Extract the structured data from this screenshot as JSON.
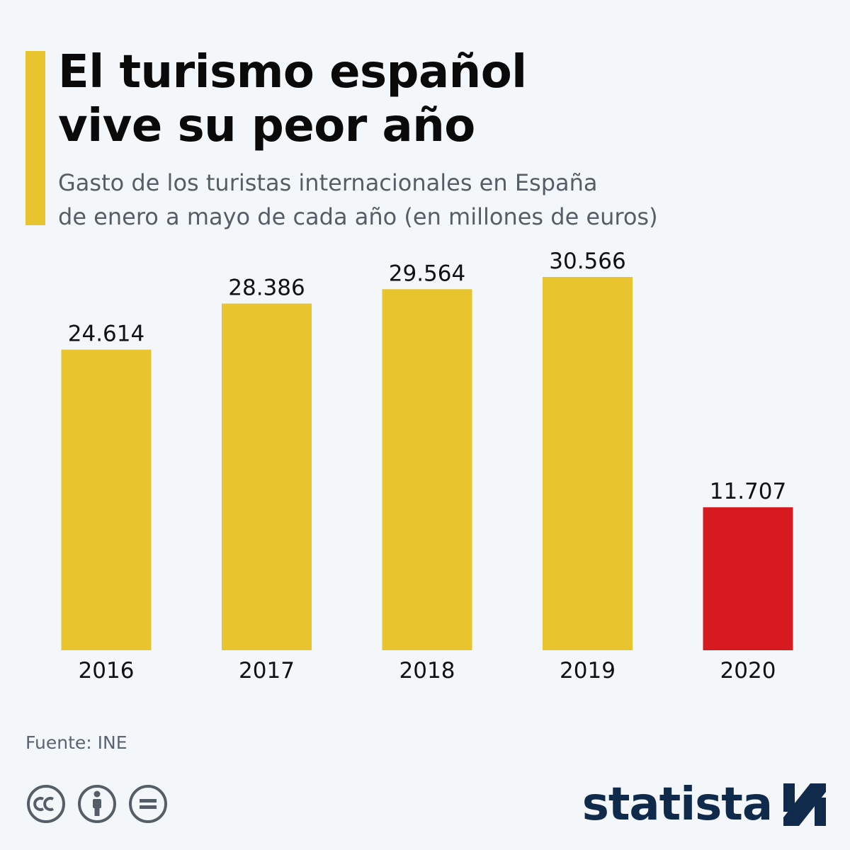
{
  "header": {
    "title_line1": "El turismo español",
    "title_line2": "vive su peor año",
    "subtitle_line1": "Gasto de los turistas internacionales en España",
    "subtitle_line2": "de enero a mayo de cada año (en millones de euros)"
  },
  "colors": {
    "accent": "#e8c42e",
    "bar_default": "#e8c42e",
    "bar_highlight": "#d71920",
    "brand": "#0f2a4a"
  },
  "chart_data": {
    "type": "bar",
    "categories": [
      "2016",
      "2017",
      "2018",
      "2019",
      "2020"
    ],
    "values": [
      24614,
      28386,
      29564,
      30566,
      11707
    ],
    "value_labels": [
      "24.614",
      "28.386",
      "29.564",
      "30.566",
      "11.707"
    ],
    "highlight_index": 4,
    "xlabel": "",
    "ylabel": "",
    "ylim": [
      0,
      30566
    ],
    "grid": false,
    "legend": "none"
  },
  "footer": {
    "source": "Fuente: INE",
    "license_icons": [
      "cc-icon",
      "by-attribution-icon",
      "no-derivatives-icon"
    ],
    "brand": "statista",
    "brand_logo_icon": "statista-logo-icon"
  }
}
